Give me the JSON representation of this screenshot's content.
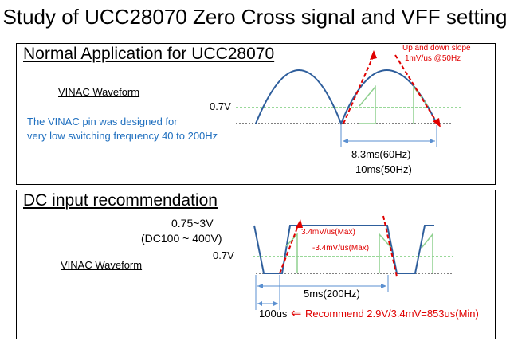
{
  "title": "Study of UCC28070 Zero Cross signal and VFF setting",
  "panel1": {
    "heading": "Normal Application for UCC28070",
    "waveform_label": "VINAC Waveform",
    "level_label": "0.7V",
    "note_line1": "The VINAC pin was designed for",
    "note_line2": "very low switching frequency 40 to 200Hz",
    "slope_line1": "Up and down slope",
    "slope_line2": "1mV/us @50Hz",
    "period_line1": "8.3ms(60Hz)",
    "period_line2": "10ms(50Hz)"
  },
  "panel2": {
    "heading": "DC input recommendation",
    "level_high": "0.75~3V",
    "dc_range": "(DC100 ~ 400V)",
    "waveform_label": "VINAC Waveform",
    "level_label": "0.7V",
    "rise_slope": "3.4mV/us(Max)",
    "fall_slope": "-3.4mV/us(Max)",
    "period": "5ms(200Hz)",
    "edge_time": "100us",
    "recommend_arrow": "⇐",
    "recommendation": "Recommend 2.9V/3.4mV=853us(Min)"
  },
  "colors": {
    "waveform": "#2e5e9c",
    "threshold": "#33b233",
    "slope": "#e00000",
    "dimension": "#5a8fd0",
    "triangle": "#8fd08f"
  }
}
